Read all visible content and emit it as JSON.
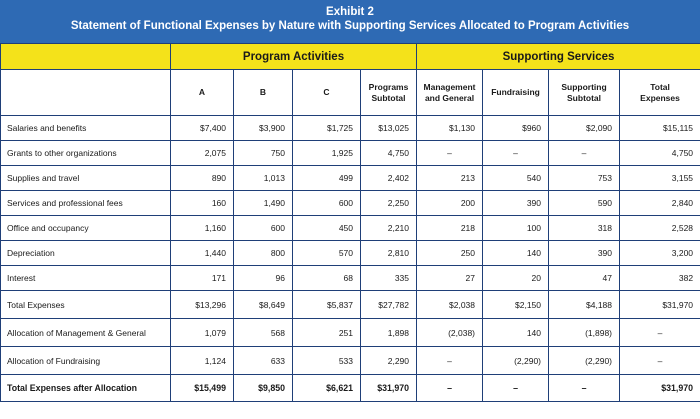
{
  "exhibit": {
    "title": "Exhibit 2",
    "subtitle": "Statement of Functional Expenses by Nature with Supporting Services Allocated to Program Activities"
  },
  "groups": {
    "program": "Program Activities",
    "supporting": "Supporting Services"
  },
  "columns": {
    "a": "A",
    "b": "B",
    "c": "C",
    "programs_subtotal_1": "Programs",
    "programs_subtotal_2": "Subtotal",
    "management_1": "Management",
    "management_2": "and General",
    "fundraising": "Fundraising",
    "supporting_subtotal_1": "Supporting",
    "supporting_subtotal_2": "Subtotal",
    "total_1": "Total",
    "total_2": "Expenses"
  },
  "rows": [
    {
      "label": "Salaries and benefits",
      "a": "$7,400",
      "b": "$3,900",
      "c": "$1,725",
      "ps": "$13,025",
      "mg": "$1,130",
      "fr": "$960",
      "ss": "$2,090",
      "te": "$15,115"
    },
    {
      "label": "Grants to other organizations",
      "a": "2,075",
      "b": "750",
      "c": "1,925",
      "ps": "4,750",
      "mg": "–",
      "fr": "–",
      "ss": "–",
      "te": "4,750"
    },
    {
      "label": "Supplies and travel",
      "a": "890",
      "b": "1,013",
      "c": "499",
      "ps": "2,402",
      "mg": "213",
      "fr": "540",
      "ss": "753",
      "te": "3,155"
    },
    {
      "label": "Services and professional fees",
      "a": "160",
      "b": "1,490",
      "c": "600",
      "ps": "2,250",
      "mg": "200",
      "fr": "390",
      "ss": "590",
      "te": "2,840"
    },
    {
      "label": "Office and occupancy",
      "a": "1,160",
      "b": "600",
      "c": "450",
      "ps": "2,210",
      "mg": "218",
      "fr": "100",
      "ss": "318",
      "te": "2,528"
    },
    {
      "label": "Depreciation",
      "a": "1,440",
      "b": "800",
      "c": "570",
      "ps": "2,810",
      "mg": "250",
      "fr": "140",
      "ss": "390",
      "te": "3,200"
    },
    {
      "label": "Interest",
      "a": "171",
      "b": "96",
      "c": "68",
      "ps": "335",
      "mg": "27",
      "fr": "20",
      "ss": "47",
      "te": "382"
    },
    {
      "label": "Total Expenses",
      "a": "$13,296",
      "b": "$8,649",
      "c": "$5,837",
      "ps": "$27,782",
      "mg": "$2,038",
      "fr": "$2,150",
      "ss": "$4,188",
      "te": "$31,970"
    },
    {
      "label": "Allocation of Management & General",
      "a": "1,079",
      "b": "568",
      "c": "251",
      "ps": "1,898",
      "mg": "(2,038)",
      "fr": "140",
      "ss": "(1,898)",
      "te": "–"
    },
    {
      "label": "Allocation of Fundraising",
      "a": "1,124",
      "b": "633",
      "c": "533",
      "ps": "2,290",
      "mg": "–",
      "fr": "(2,290)",
      "ss": "(2,290)",
      "te": "–"
    },
    {
      "label": "Total Expenses after Allocation",
      "a": "$15,499",
      "b": "$9,850",
      "c": "$6,621",
      "ps": "$31,970",
      "mg": "–",
      "fr": "–",
      "ss": "–",
      "te": "$31,970"
    }
  ]
}
